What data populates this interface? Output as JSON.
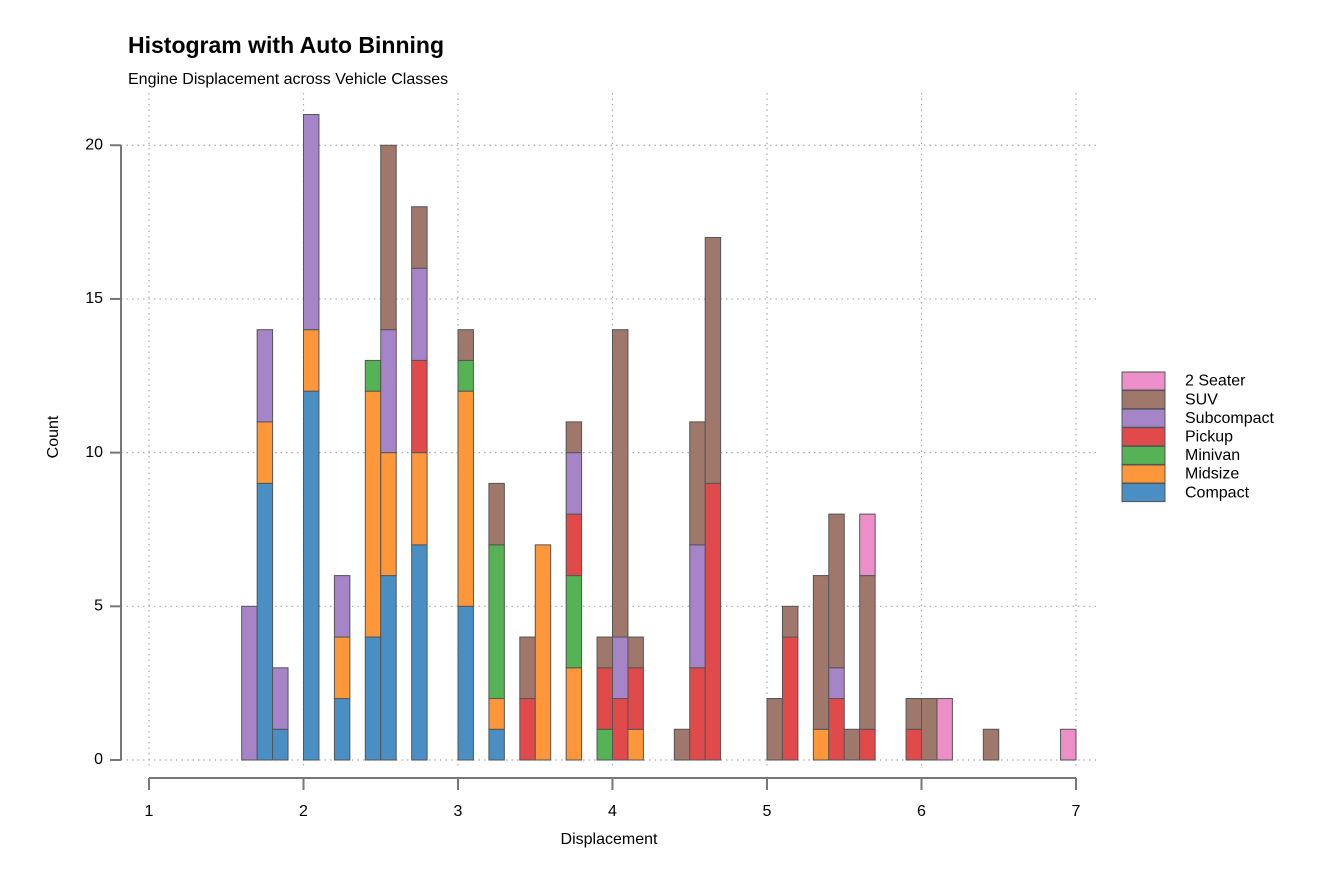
{
  "chart_data": {
    "type": "histogram",
    "title": "Histogram with Auto Binning",
    "subtitle": "Engine Displacement across Vehicle Classes",
    "x_label": "Displacement",
    "y_label": "Count",
    "stacked": true,
    "grid": true,
    "legend": "right",
    "xlim": [
      1,
      7
    ],
    "xticks": [
      1,
      2,
      3,
      4,
      5,
      6,
      7
    ],
    "ylim": [
      0,
      21.7
    ],
    "yticks": [
      0,
      5,
      10,
      15,
      20
    ],
    "bins": [
      1.6,
      1.7,
      1.8,
      1.9,
      2.0,
      2.1,
      2.2,
      2.3,
      2.4,
      2.5,
      2.6,
      2.7,
      2.8,
      2.9,
      3.0,
      3.1,
      3.2,
      3.3,
      3.4,
      3.5,
      3.6,
      3.7,
      3.8,
      3.9,
      4.0,
      4.1,
      4.2,
      4.3,
      4.4,
      4.5,
      4.6,
      4.7,
      4.8,
      4.9,
      5.0,
      5.1,
      5.2,
      5.3,
      5.4,
      5.5,
      5.6,
      5.7,
      5.8,
      5.9,
      6.0,
      6.1,
      6.2,
      6.3,
      6.4,
      6.5,
      6.6,
      6.7,
      6.8,
      6.9,
      7.0
    ],
    "series": [
      {
        "name": "Compact",
        "color": "#4a8fc4",
        "values": [
          0,
          9,
          1,
          0,
          12,
          0,
          2,
          0,
          4,
          6,
          0,
          7,
          0,
          0,
          5,
          0,
          1,
          0,
          0,
          0,
          0,
          0,
          0,
          0,
          0,
          0,
          0,
          0,
          0,
          0,
          0,
          0,
          0,
          0,
          0,
          0,
          0,
          0,
          0,
          0,
          0,
          0,
          0,
          0,
          0,
          0,
          0,
          0,
          0,
          0,
          0,
          0,
          0,
          0
        ]
      },
      {
        "name": "Midsize",
        "color": "#fd973a",
        "values": [
          0,
          2,
          0,
          0,
          2,
          0,
          2,
          0,
          8,
          4,
          0,
          3,
          0,
          0,
          7,
          0,
          1,
          0,
          0,
          7,
          0,
          3,
          0,
          0,
          0,
          1,
          0,
          0,
          0,
          0,
          0,
          0,
          0,
          0,
          0,
          0,
          0,
          1,
          0,
          0,
          0,
          0,
          0,
          0,
          0,
          0,
          0,
          0,
          0,
          0,
          0,
          0,
          0,
          0
        ]
      },
      {
        "name": "Minivan",
        "color": "#55b356",
        "values": [
          0,
          0,
          0,
          0,
          0,
          0,
          0,
          0,
          1,
          0,
          0,
          0,
          0,
          0,
          1,
          0,
          5,
          0,
          0,
          0,
          0,
          3,
          0,
          1,
          0,
          0,
          0,
          0,
          0,
          0,
          0,
          0,
          0,
          0,
          0,
          0,
          0,
          0,
          0,
          0,
          0,
          0,
          0,
          0,
          0,
          0,
          0,
          0,
          0,
          0,
          0,
          0,
          0,
          0
        ]
      },
      {
        "name": "Pickup",
        "color": "#e04a4b",
        "values": [
          0,
          0,
          0,
          0,
          0,
          0,
          0,
          0,
          0,
          0,
          0,
          3,
          0,
          0,
          0,
          0,
          0,
          0,
          2,
          0,
          0,
          2,
          0,
          2,
          2,
          2,
          0,
          0,
          0,
          3,
          9,
          0,
          0,
          0,
          0,
          4,
          0,
          0,
          2,
          0,
          1,
          0,
          0,
          1,
          0,
          0,
          0,
          0,
          0,
          0,
          0,
          0,
          0,
          0
        ]
      },
      {
        "name": "Subcompact",
        "color": "#a584c8",
        "values": [
          5,
          3,
          2,
          0,
          7,
          0,
          2,
          0,
          0,
          4,
          0,
          3,
          0,
          0,
          0,
          0,
          0,
          0,
          0,
          0,
          0,
          2,
          0,
          0,
          2,
          0,
          0,
          0,
          0,
          4,
          0,
          0,
          0,
          0,
          0,
          0,
          0,
          0,
          1,
          0,
          0,
          0,
          0,
          0,
          0,
          0,
          0,
          0,
          0,
          0,
          0,
          0,
          0,
          0
        ]
      },
      {
        "name": "SUV",
        "color": "#a0776b",
        "values": [
          0,
          0,
          0,
          0,
          0,
          0,
          0,
          0,
          0,
          6,
          0,
          2,
          0,
          0,
          1,
          0,
          2,
          0,
          2,
          0,
          0,
          1,
          0,
          1,
          10,
          1,
          0,
          0,
          1,
          4,
          8,
          0,
          0,
          0,
          2,
          1,
          0,
          5,
          5,
          1,
          5,
          0,
          0,
          1,
          2,
          0,
          0,
          0,
          1,
          0,
          0,
          0,
          0,
          0
        ]
      },
      {
        "name": "2 Seater",
        "color": "#ec8fc8",
        "values": [
          0,
          0,
          0,
          0,
          0,
          0,
          0,
          0,
          0,
          0,
          0,
          0,
          0,
          0,
          0,
          0,
          0,
          0,
          0,
          0,
          0,
          0,
          0,
          0,
          0,
          0,
          0,
          0,
          0,
          0,
          0,
          0,
          0,
          0,
          0,
          0,
          0,
          0,
          0,
          0,
          2,
          0,
          0,
          0,
          0,
          2,
          0,
          0,
          0,
          0,
          0,
          0,
          0,
          1
        ]
      }
    ]
  }
}
